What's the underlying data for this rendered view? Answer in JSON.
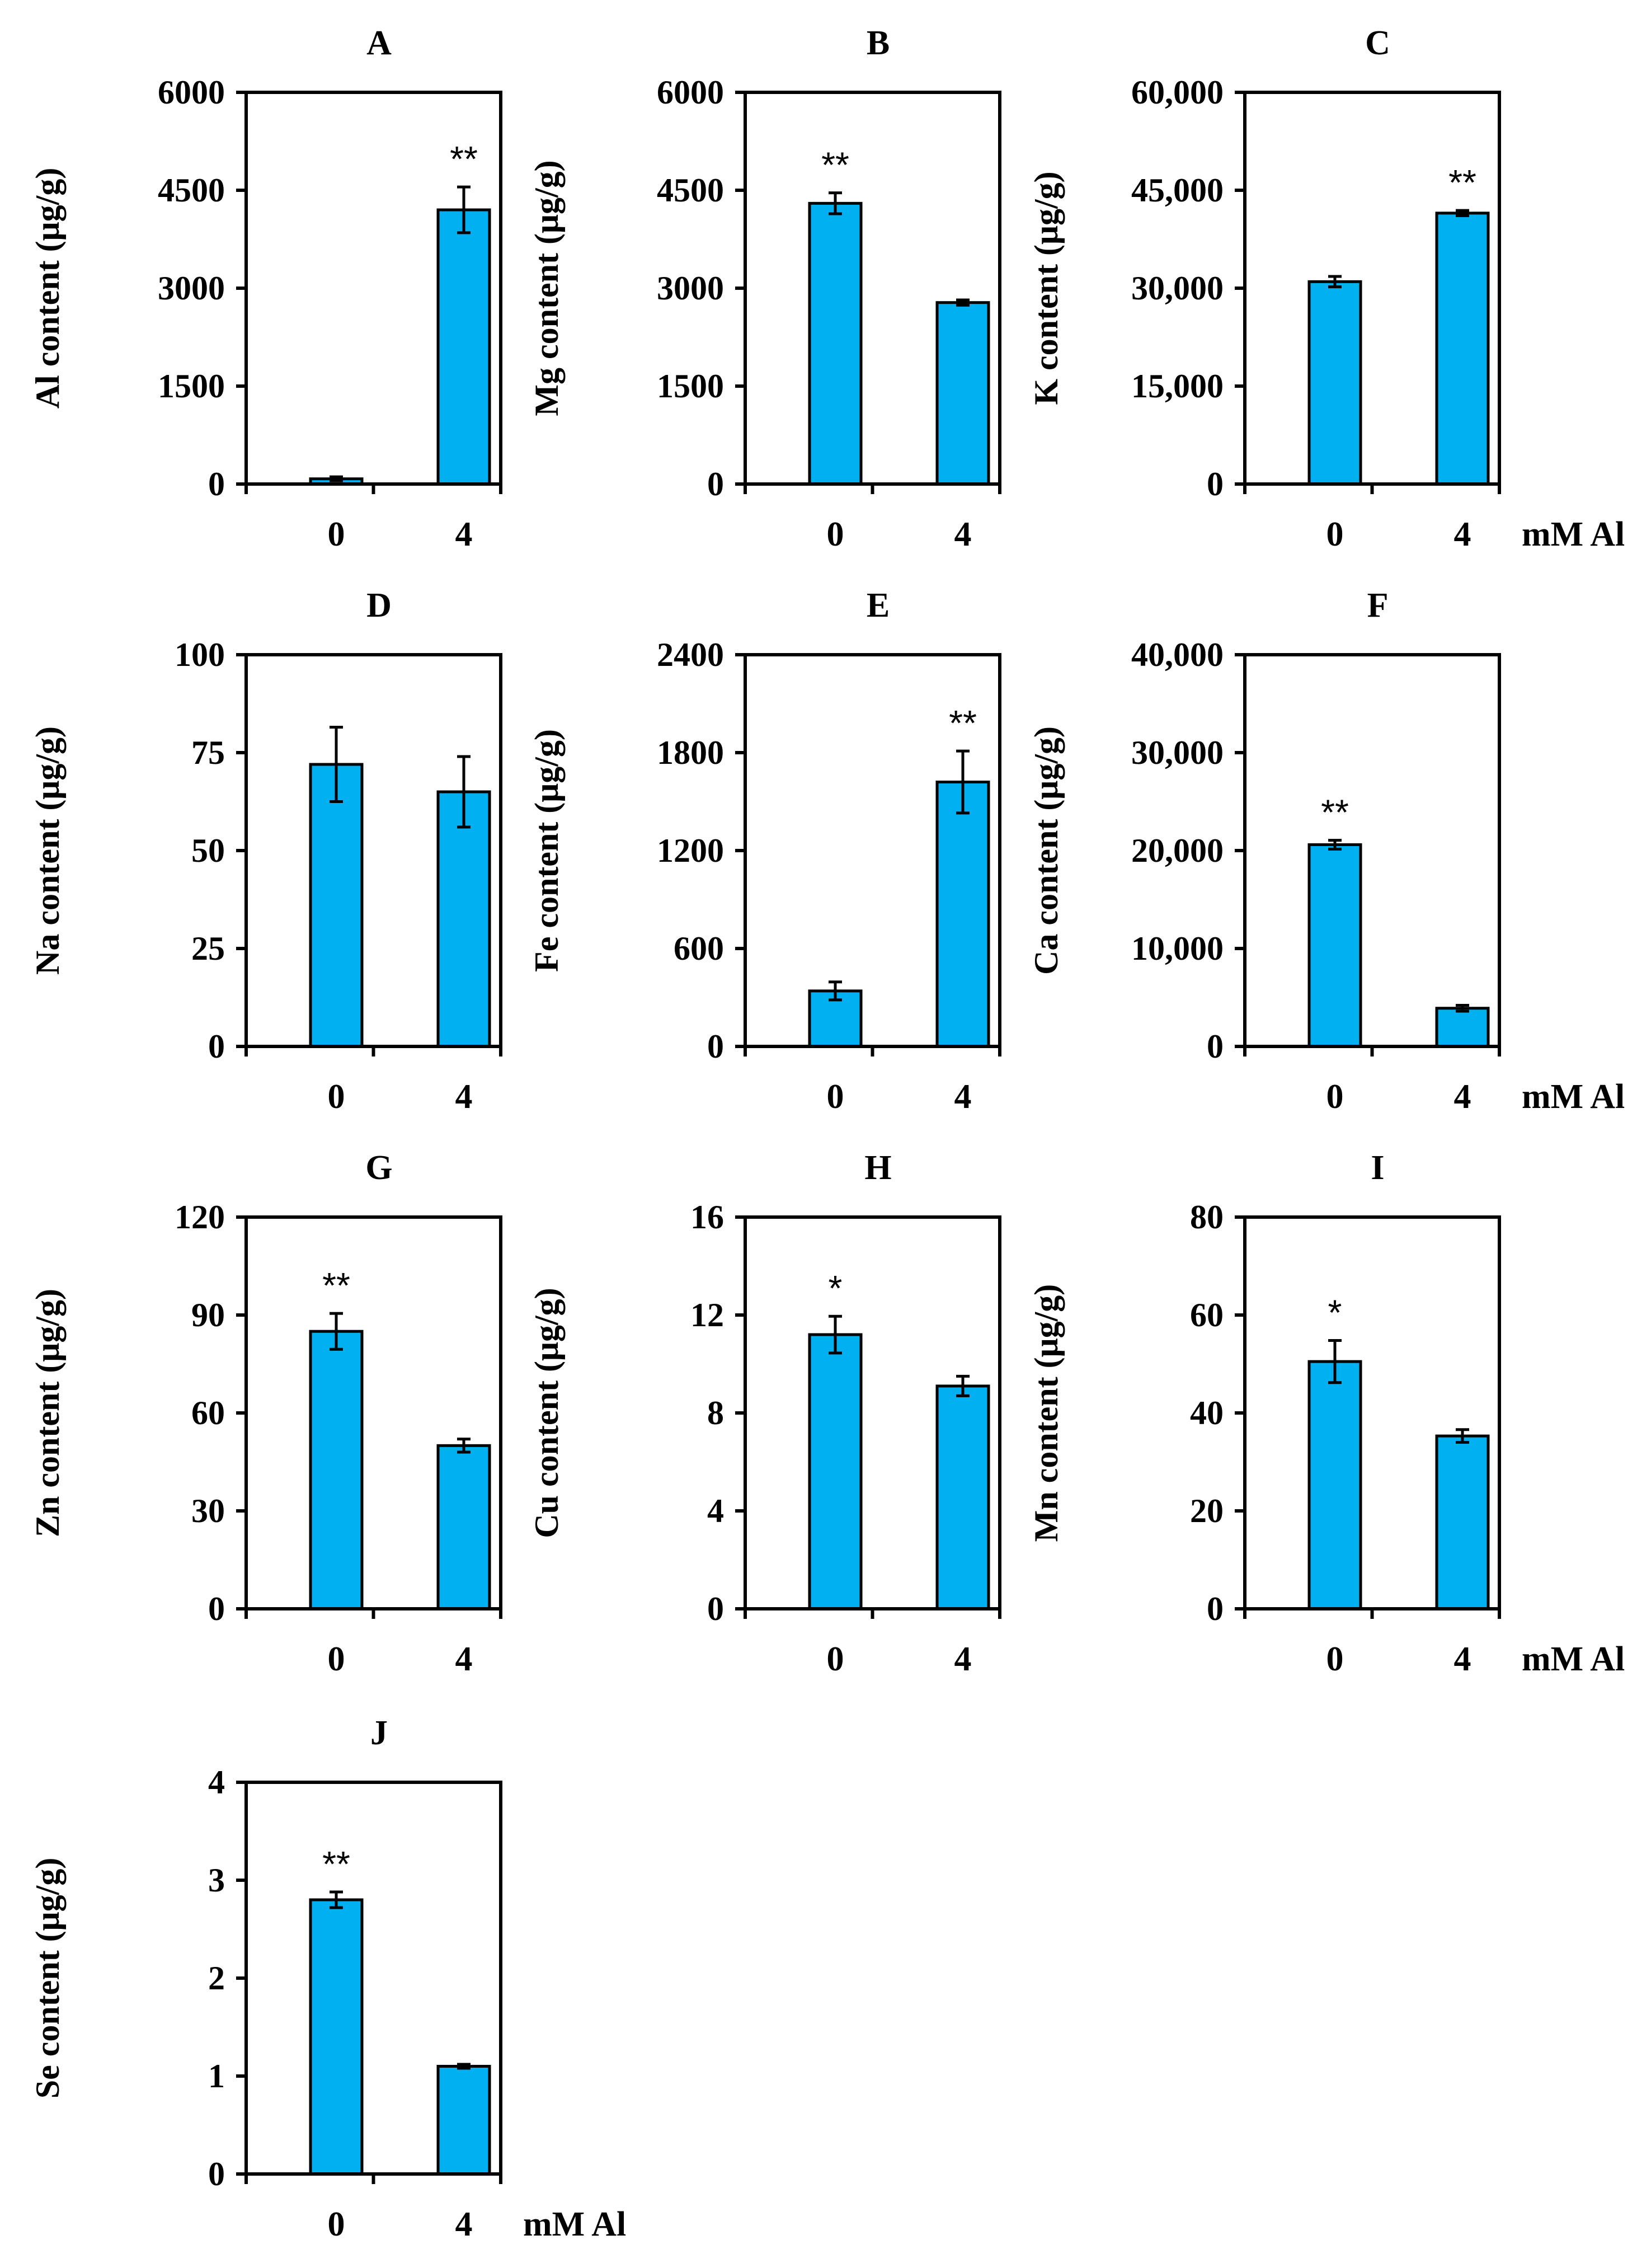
{
  "x_unit_label": "mM Al",
  "chart_data": [
    {
      "panel": "A",
      "type": "bar",
      "ylabel": "Al content (μg/g)",
      "categories": [
        "0",
        "4"
      ],
      "values": [
        80,
        4200
      ],
      "errors": [
        30,
        350
      ],
      "significance": [
        "",
        "**"
      ],
      "ylim": [
        0,
        6000
      ],
      "yticks": [
        "0",
        "1500",
        "3000",
        "4500",
        "6000"
      ],
      "show_unit": false
    },
    {
      "panel": "B",
      "type": "bar",
      "ylabel": "Mg content (μg/g)",
      "categories": [
        "0",
        "4"
      ],
      "values": [
        4300,
        2780
      ],
      "errors": [
        160,
        40
      ],
      "significance": [
        "**",
        ""
      ],
      "ylim": [
        0,
        6000
      ],
      "yticks": [
        "0",
        "1500",
        "3000",
        "4500",
        "6000"
      ],
      "show_unit": false
    },
    {
      "panel": "C",
      "type": "bar",
      "ylabel": "K content (μg/g)",
      "categories": [
        "0",
        "4"
      ],
      "values": [
        31000,
        41500
      ],
      "errors": [
        800,
        400
      ],
      "significance": [
        "",
        "**"
      ],
      "ylim": [
        0,
        60000
      ],
      "yticks": [
        "0",
        "15,000",
        "30,000",
        "45,000",
        "60,000"
      ],
      "show_unit": true
    },
    {
      "panel": "D",
      "type": "bar",
      "ylabel": "Na content (μg/g)",
      "categories": [
        "0",
        "4"
      ],
      "values": [
        72,
        65
      ],
      "errors": [
        9.5,
        9
      ],
      "significance": [
        "",
        ""
      ],
      "ylim": [
        0,
        100
      ],
      "yticks": [
        "0",
        "25",
        "50",
        "75",
        "100"
      ],
      "show_unit": false
    },
    {
      "panel": "E",
      "type": "bar",
      "ylabel": "Fe content (μg/g)",
      "categories": [
        "0",
        "4"
      ],
      "values": [
        340,
        1620
      ],
      "errors": [
        55,
        190
      ],
      "significance": [
        "",
        "**"
      ],
      "ylim": [
        0,
        2400
      ],
      "yticks": [
        "0",
        "600",
        "1200",
        "1800",
        "2400"
      ],
      "show_unit": false
    },
    {
      "panel": "F",
      "type": "bar",
      "ylabel": "Ca content (μg/g)",
      "categories": [
        "0",
        "4"
      ],
      "values": [
        20600,
        3900
      ],
      "errors": [
        450,
        300
      ],
      "significance": [
        "**",
        ""
      ],
      "ylim": [
        0,
        40000
      ],
      "yticks": [
        "0",
        "10,000",
        "20,000",
        "30,000",
        "40,000"
      ],
      "show_unit": true
    },
    {
      "panel": "G",
      "type": "bar",
      "ylabel": "Zn content (μg/g)",
      "categories": [
        "0",
        "4"
      ],
      "values": [
        85,
        50
      ],
      "errors": [
        5.5,
        2
      ],
      "significance": [
        "**",
        ""
      ],
      "ylim": [
        0,
        120
      ],
      "yticks": [
        "0",
        "30",
        "60",
        "90",
        "120"
      ],
      "show_unit": false
    },
    {
      "panel": "H",
      "type": "bar",
      "ylabel": "Cu content (μg/g)",
      "categories": [
        "0",
        "4"
      ],
      "values": [
        11.2,
        9.1
      ],
      "errors": [
        0.75,
        0.4
      ],
      "significance": [
        "*",
        ""
      ],
      "ylim": [
        0,
        16
      ],
      "yticks": [
        "0",
        "4",
        "8",
        "12",
        "16"
      ],
      "show_unit": false
    },
    {
      "panel": "I",
      "type": "bar",
      "ylabel": "Mn content (μg/g)",
      "categories": [
        "0",
        "4"
      ],
      "values": [
        50.5,
        35.3
      ],
      "errors": [
        4.3,
        1.3
      ],
      "significance": [
        "*",
        ""
      ],
      "ylim": [
        0,
        80
      ],
      "yticks": [
        "0",
        "20",
        "40",
        "60",
        "80"
      ],
      "show_unit": true
    },
    {
      "panel": "J",
      "type": "bar",
      "ylabel": "Se content (μg/g)",
      "categories": [
        "0",
        "4"
      ],
      "values": [
        2.8,
        1.1
      ],
      "errors": [
        0.08,
        0.02
      ],
      "significance": [
        "**",
        ""
      ],
      "ylim": [
        0,
        4
      ],
      "yticks": [
        "0",
        "1",
        "2",
        "3",
        "4"
      ],
      "show_unit": true
    }
  ],
  "colors": {
    "bar": "#00B0F0",
    "axis": "#000000",
    "text": "#000000"
  }
}
